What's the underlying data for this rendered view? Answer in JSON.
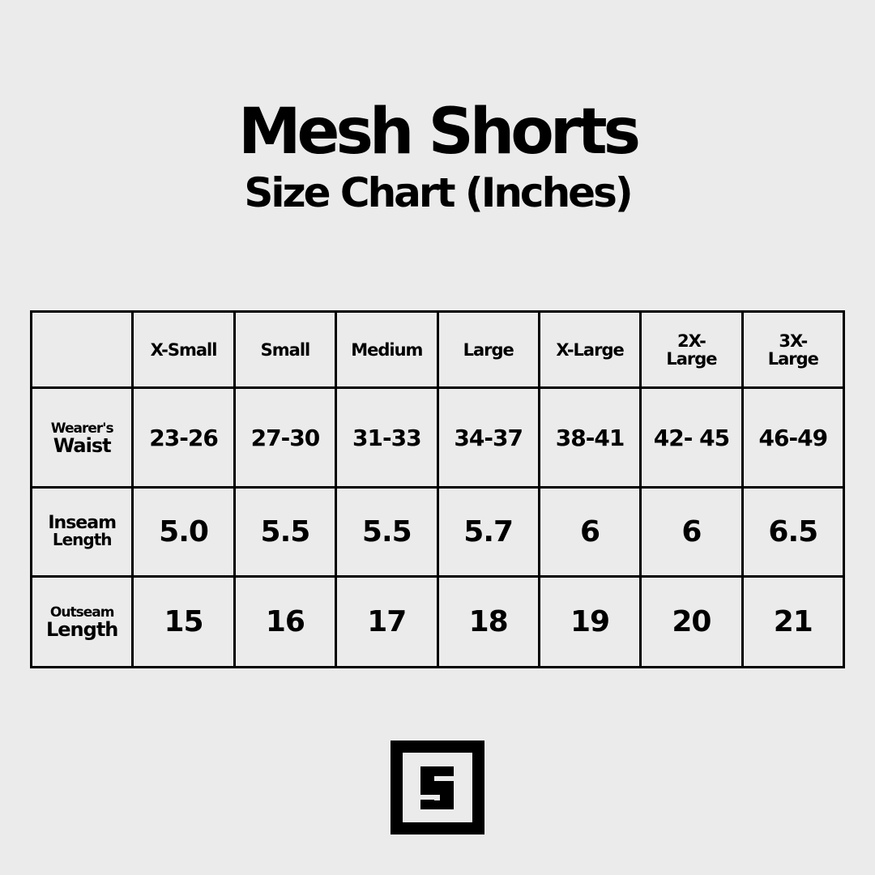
{
  "header": {
    "title": "Mesh Shorts",
    "subtitle": "Size Chart (Inches)"
  },
  "table": {
    "columns": [
      "",
      "X-Small",
      "Small",
      "Medium",
      "Large",
      "X-Large",
      "2X-Large",
      "3X-Large"
    ],
    "rows": [
      {
        "label_top": "Wearer's",
        "label_bottom": "Waist",
        "values": [
          "23-26",
          "27-30",
          "31-33",
          "34-37",
          "38-41",
          "42- 45",
          "46-49"
        ]
      },
      {
        "label_top": "Inseam",
        "label_bottom": "Length",
        "values": [
          "5.0",
          "5.5",
          "5.5",
          "5.7",
          "6",
          "6",
          "6.5"
        ]
      },
      {
        "label_top": "Outseam",
        "label_bottom": "Length",
        "values": [
          "15",
          "16",
          "17",
          "18",
          "19",
          "20",
          "21"
        ]
      }
    ]
  },
  "logo": {
    "icon": "s-square-logo",
    "text": "S"
  },
  "colors": {
    "background": "#ebebeb",
    "ink": "#000000"
  }
}
